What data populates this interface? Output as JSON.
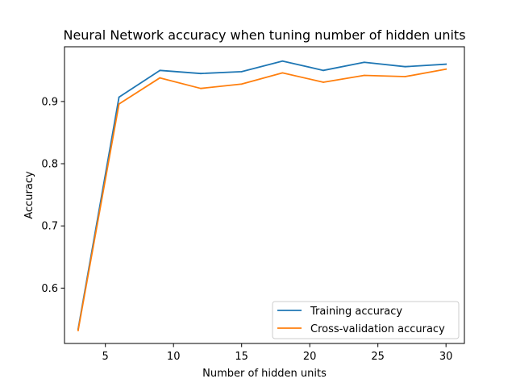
{
  "chart_data": {
    "type": "line",
    "title": "Neural Network accuracy when tuning number of hidden units",
    "xlabel": "Number of hidden units",
    "ylabel": "Accuracy",
    "xlim": [
      2.0,
      31.35
    ],
    "ylim": [
      0.511,
      0.988
    ],
    "xticks": [
      5,
      10,
      15,
      20,
      25,
      30
    ],
    "yticks": [
      0.6,
      0.7,
      0.8,
      0.9
    ],
    "grid": false,
    "legend_position": "lower-right",
    "x": [
      3,
      6,
      9,
      12,
      15,
      18,
      21,
      24,
      27,
      30
    ],
    "series": [
      {
        "name": "Training accuracy",
        "color": "#1f77b4",
        "values": [
          0.534,
          0.907,
          0.95,
          0.945,
          0.948,
          0.965,
          0.95,
          0.963,
          0.956,
          0.96
        ]
      },
      {
        "name": "Cross-validation accuracy",
        "color": "#ff7f0e",
        "values": [
          0.532,
          0.896,
          0.938,
          0.921,
          0.928,
          0.946,
          0.931,
          0.942,
          0.94,
          0.952
        ]
      }
    ]
  }
}
